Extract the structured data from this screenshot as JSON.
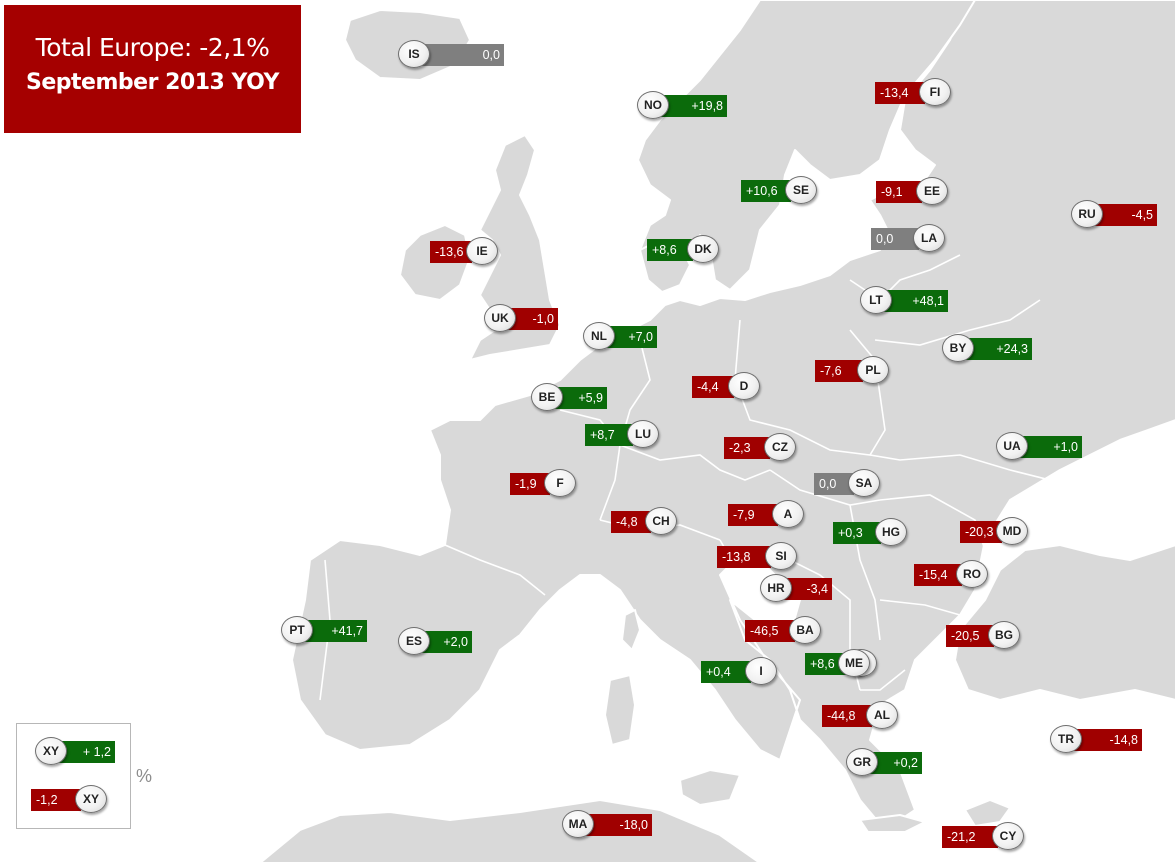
{
  "title": {
    "line1": "Total Europe: -2,1%",
    "line2": "September 2013 YOY"
  },
  "colors": {
    "positive": "#0b6b0b",
    "negative": "#a00000",
    "zero": "#7f7f7f",
    "land": "#d9d9d9",
    "title_background": "#a50000"
  },
  "countries": [
    {
      "code": "IS",
      "value": "0,0",
      "sign": "zero"
    },
    {
      "code": "NO",
      "value": "+19,8",
      "sign": "positive"
    },
    {
      "code": "FI",
      "value": "-13,4",
      "sign": "negative"
    },
    {
      "code": "SE",
      "value": "+10,6",
      "sign": "positive"
    },
    {
      "code": "EE",
      "value": "-9,1",
      "sign": "negative"
    },
    {
      "code": "RU",
      "value": "-4,5",
      "sign": "negative"
    },
    {
      "code": "LA",
      "value": "0,0",
      "sign": "zero"
    },
    {
      "code": "IE",
      "value": "-13,6",
      "sign": "negative"
    },
    {
      "code": "DK",
      "value": "+8,6",
      "sign": "positive"
    },
    {
      "code": "LT",
      "value": "+48,1",
      "sign": "positive"
    },
    {
      "code": "UK",
      "value": "-1,0",
      "sign": "negative"
    },
    {
      "code": "NL",
      "value": "+7,0",
      "sign": "positive"
    },
    {
      "code": "BY",
      "value": "+24,3",
      "sign": "positive"
    },
    {
      "code": "D",
      "value": "-4,4",
      "sign": "negative"
    },
    {
      "code": "PL",
      "value": "-7,6",
      "sign": "negative"
    },
    {
      "code": "BE",
      "value": "+5,9",
      "sign": "positive"
    },
    {
      "code": "LU",
      "value": "+8,7",
      "sign": "positive"
    },
    {
      "code": "CZ",
      "value": "-2,3",
      "sign": "negative"
    },
    {
      "code": "UA",
      "value": "+1,0",
      "sign": "positive"
    },
    {
      "code": "F",
      "value": "-1,9",
      "sign": "negative"
    },
    {
      "code": "SA",
      "value": "0,0",
      "sign": "zero"
    },
    {
      "code": "CH",
      "value": "-4,8",
      "sign": "negative"
    },
    {
      "code": "A",
      "value": "-7,9",
      "sign": "negative"
    },
    {
      "code": "HG",
      "value": "+0,3",
      "sign": "positive"
    },
    {
      "code": "MD",
      "value": "-20,3",
      "sign": "negative"
    },
    {
      "code": "SI",
      "value": "-13,8",
      "sign": "negative"
    },
    {
      "code": "RO",
      "value": "-15,4",
      "sign": "negative"
    },
    {
      "code": "HR",
      "value": "-3,4",
      "sign": "negative"
    },
    {
      "code": "PT",
      "value": "+41,7",
      "sign": "positive"
    },
    {
      "code": "ES",
      "value": "+2,0",
      "sign": "positive"
    },
    {
      "code": "BA",
      "value": "-46,5",
      "sign": "negative"
    },
    {
      "code": "BG",
      "value": "-20,5",
      "sign": "negative"
    },
    {
      "code": "I",
      "value": "+0,4",
      "sign": "positive"
    },
    {
      "code": "RS",
      "value": "+8,6",
      "sign": "positive"
    },
    {
      "code": "ME",
      "value": "",
      "sign": "none"
    },
    {
      "code": "AL",
      "value": "-44,8",
      "sign": "negative"
    },
    {
      "code": "TR",
      "value": "-14,8",
      "sign": "negative"
    },
    {
      "code": "GR",
      "value": "+0,2",
      "sign": "positive"
    },
    {
      "code": "MA",
      "value": "-18,0",
      "sign": "negative"
    },
    {
      "code": "CY",
      "value": "-21,2",
      "sign": "negative"
    }
  ],
  "legend": {
    "items": [
      {
        "code": "XY",
        "value": "+ 1,2",
        "sign": "positive"
      },
      {
        "code": "XY",
        "value": "-1,2",
        "sign": "negative"
      }
    ],
    "unit": "%"
  }
}
